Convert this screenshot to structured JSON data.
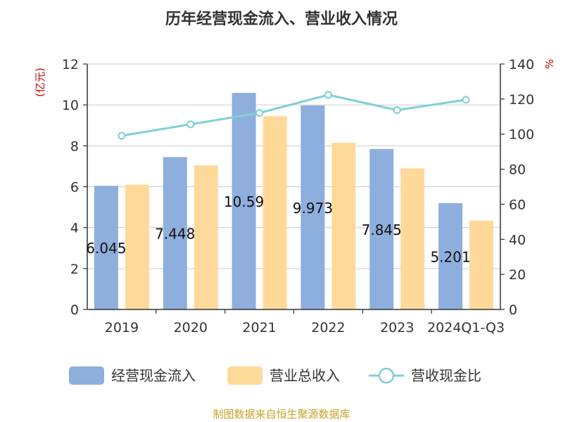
{
  "chart_data": {
    "type": "bar",
    "title": "历年经营现金流入、营业收入情况",
    "categories": [
      "2019",
      "2020",
      "2021",
      "2022",
      "2023",
      "2024Q1-Q3"
    ],
    "series": [
      {
        "name": "经营现金流入",
        "type": "bar",
        "axis": "left",
        "color": "#8eaedd",
        "values": [
          6.045,
          7.448,
          10.59,
          9.973,
          7.845,
          5.201
        ]
      },
      {
        "name": "营业总收入",
        "type": "bar",
        "axis": "left",
        "color": "#ffd99a",
        "values": [
          6.1,
          7.05,
          9.45,
          8.15,
          6.9,
          4.35
        ]
      },
      {
        "name": "营收现金比",
        "type": "line",
        "axis": "right",
        "color": "#7fd0d4",
        "values": [
          99.1,
          105.6,
          112.1,
          122.4,
          113.7,
          119.6
        ]
      }
    ],
    "data_labels": [
      "6.045",
      "7.448",
      "10.59",
      "9.973",
      "7.845",
      "5.201"
    ],
    "y_left": {
      "label": "(亿元)",
      "min": 0,
      "max": 12,
      "ticks": [
        0,
        2,
        4,
        6,
        8,
        10,
        12
      ]
    },
    "y_right": {
      "label": "%",
      "min": 0,
      "max": 140,
      "ticks": [
        0,
        20,
        40,
        60,
        80,
        100,
        120,
        140
      ]
    },
    "grid": true,
    "legend_position": "bottom"
  },
  "source": "制图数据来自恒生聚源数据库"
}
